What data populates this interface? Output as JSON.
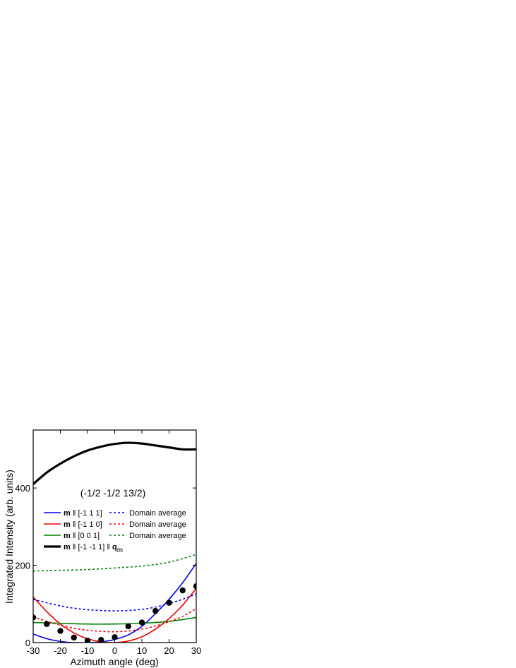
{
  "chart_data": {
    "type": "line",
    "xlabel": "Azimuth angle (deg)",
    "ylabel": "Integrated Intensity (arb. units)",
    "xlim": [
      -30,
      30
    ],
    "ylim": [
      0,
      550
    ],
    "x_ticks": [
      -30,
      -20,
      -10,
      0,
      10,
      20,
      30
    ],
    "y_ticks": [
      0,
      200,
      400
    ],
    "annotation": "(-1/2 -1/2 13/2)",
    "grid": false,
    "legend_position": "center-left",
    "series": [
      {
        "key": "s111",
        "legend_bold": "m",
        "legend_rest": " ‖ [-1 1 1]",
        "color": "#0000ee",
        "style": "solid",
        "width": 1.6,
        "x": [
          -30,
          -25,
          -20,
          -15,
          -10,
          -5,
          0,
          5,
          10,
          15,
          20,
          25,
          30
        ],
        "y": [
          22,
          10,
          3,
          0,
          0,
          2,
          8,
          20,
          42,
          75,
          112,
          155,
          205
        ]
      },
      {
        "key": "s110",
        "legend_bold": "m",
        "legend_rest": " ‖ [-1 1 0]",
        "color": "#ee0000",
        "style": "solid",
        "width": 1.6,
        "x": [
          -30,
          -25,
          -20,
          -15,
          -10,
          -5,
          0,
          5,
          10,
          15,
          20,
          25,
          30
        ],
        "y": [
          118,
          80,
          48,
          25,
          10,
          2,
          0,
          4,
          15,
          35,
          62,
          97,
          140
        ]
      },
      {
        "key": "s001",
        "legend_bold": "m",
        "legend_rest": " ‖ [0 0 1]",
        "color": "#008000",
        "style": "solid",
        "width": 1.6,
        "x": [
          -30,
          -20,
          -10,
          0,
          10,
          20,
          30
        ],
        "y": [
          52,
          50,
          48,
          48,
          50,
          55,
          65
        ]
      },
      {
        "key": "sqm",
        "legend_bold": "m",
        "legend_rest": " ‖ [-1 -1 1] ‖ ",
        "legend_q": "q",
        "legend_sub": "m",
        "color": "#000000",
        "style": "solid",
        "width": 3.2,
        "x": [
          -30,
          -25,
          -20,
          -15,
          -10,
          -5,
          0,
          5,
          10,
          15,
          20,
          25,
          30
        ],
        "y": [
          410,
          440,
          463,
          482,
          497,
          507,
          514,
          517,
          515,
          510,
          505,
          500,
          500
        ]
      },
      {
        "key": "d111",
        "legend_bold": "",
        "legend_rest": "Domain average",
        "color": "#0000ee",
        "style": "dotted",
        "width": 1.6,
        "x": [
          -30,
          -25,
          -20,
          -15,
          -10,
          -5,
          0,
          5,
          10,
          15,
          20,
          25,
          30
        ],
        "y": [
          112,
          103,
          95,
          89,
          85,
          83,
          82,
          83,
          86,
          92,
          101,
          112,
          126
        ]
      },
      {
        "key": "d110",
        "legend_bold": "",
        "legend_rest": "Domain average",
        "color": "#ee0000",
        "style": "dotted",
        "width": 1.6,
        "x": [
          -30,
          -25,
          -20,
          -15,
          -10,
          -5,
          0,
          5,
          10,
          15,
          20,
          25,
          30
        ],
        "y": [
          67,
          55,
          45,
          37,
          32,
          29,
          28,
          30,
          35,
          43,
          54,
          68,
          88
        ]
      },
      {
        "key": "d001",
        "legend_bold": "",
        "legend_rest": "Domain average",
        "color": "#008000",
        "style": "dotted",
        "width": 1.6,
        "x": [
          -30,
          -20,
          -10,
          0,
          10,
          20,
          30
        ],
        "y": [
          185,
          187,
          189,
          193,
          198,
          208,
          228
        ]
      }
    ],
    "scatter": {
      "name": "data",
      "color": "#000000",
      "x": [
        -30,
        -25,
        -20,
        -15,
        -10,
        -5,
        0,
        5,
        10,
        15,
        20,
        25,
        30
      ],
      "y": [
        65,
        48,
        30,
        13,
        5,
        7,
        14,
        42,
        52,
        82,
        103,
        135,
        146
      ]
    },
    "legend_order": [
      "s111",
      "d111",
      "s110",
      "d110",
      "s001",
      "d001",
      "sqm"
    ]
  }
}
